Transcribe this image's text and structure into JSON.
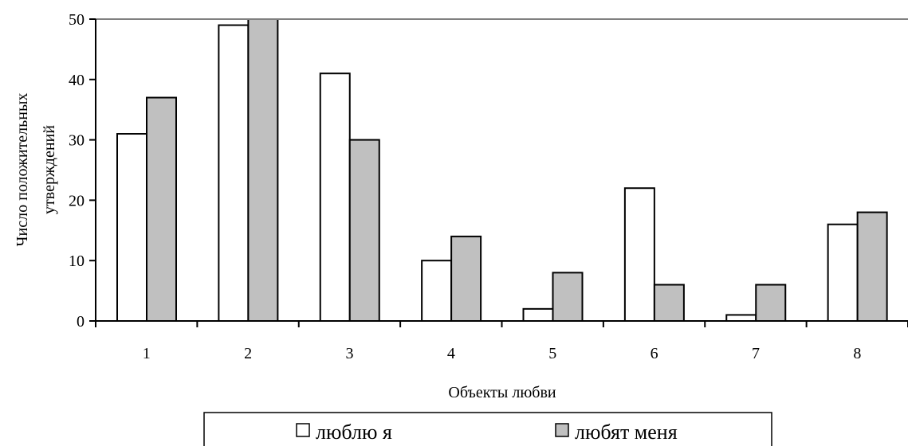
{
  "chart_data": {
    "type": "bar",
    "categories": [
      "1",
      "2",
      "3",
      "4",
      "5",
      "6",
      "7",
      "8"
    ],
    "series": [
      {
        "name": "люблю я",
        "values": [
          31,
          49,
          41,
          10,
          2,
          22,
          1,
          16
        ],
        "color": "#ffffff"
      },
      {
        "name": "любят меня",
        "values": [
          37,
          51,
          30,
          14,
          8,
          6,
          6,
          18
        ],
        "color": "#c0c0c0"
      }
    ],
    "xlabel": "Объекты любви",
    "ylabel": [
      "Число положительных",
      "утверждений"
    ],
    "ylim": [
      0,
      50
    ],
    "yticks": [
      "0",
      "10",
      "20",
      "30",
      "40",
      "50"
    ],
    "grid": false,
    "legend_position": "bottom"
  }
}
